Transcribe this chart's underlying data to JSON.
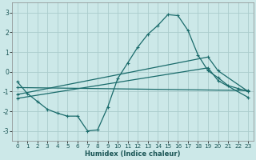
{
  "xlabel": "Humidex (Indice chaleur)",
  "background_color": "#cce8e8",
  "grid_color": "#aacccc",
  "line_color": "#1a6b6b",
  "xlim": [
    -0.5,
    23.5
  ],
  "ylim": [
    -3.5,
    3.5
  ],
  "yticks": [
    -3,
    -2,
    -1,
    0,
    1,
    2,
    3
  ],
  "xticks": [
    0,
    1,
    2,
    3,
    4,
    5,
    6,
    7,
    8,
    9,
    10,
    11,
    12,
    13,
    14,
    15,
    16,
    17,
    18,
    19,
    20,
    21,
    22,
    23
  ],
  "line1_x": [
    0,
    1,
    2,
    3,
    4,
    5,
    6,
    7,
    8,
    9,
    10,
    11,
    12,
    13,
    14,
    15,
    16,
    17,
    18,
    19,
    20,
    21,
    22,
    23
  ],
  "line1_y": [
    -0.5,
    -1.1,
    -1.5,
    -1.9,
    -2.1,
    -2.25,
    -2.25,
    -3.0,
    -2.95,
    -1.8,
    -0.35,
    0.45,
    1.25,
    1.9,
    2.35,
    2.9,
    2.85,
    2.1,
    0.85,
    0.05,
    -0.3,
    -0.7,
    -0.85,
    -1.0
  ],
  "line2_x": [
    0,
    23
  ],
  "line2_y": [
    -0.8,
    -0.95
  ],
  "line3_x": [
    0,
    19,
    20,
    23
  ],
  "line3_y": [
    -1.15,
    0.75,
    0.05,
    -1.0
  ],
  "line4_x": [
    0,
    19,
    20,
    23
  ],
  "line4_y": [
    -1.35,
    0.2,
    -0.45,
    -1.3
  ]
}
